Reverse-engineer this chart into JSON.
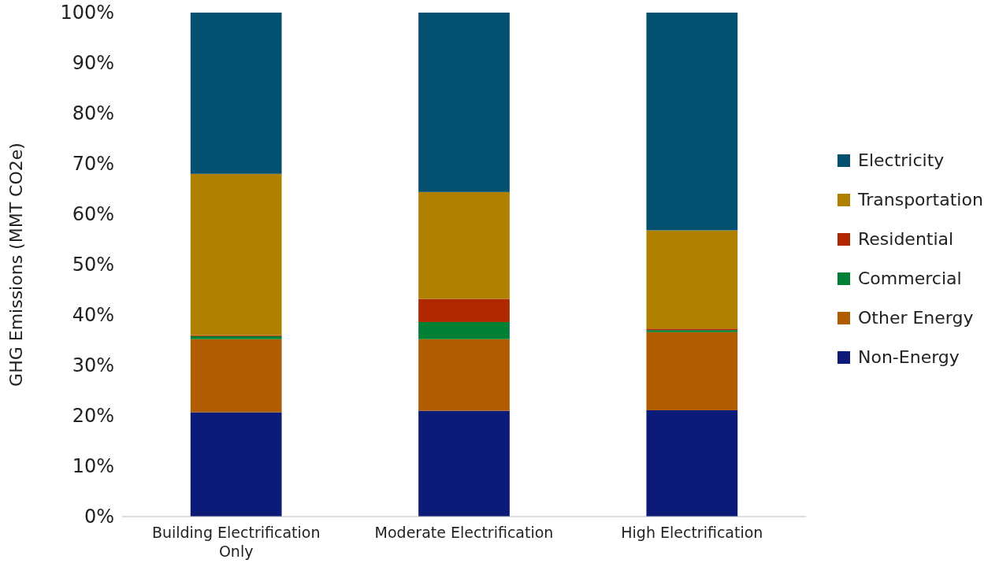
{
  "chart_data": {
    "type": "bar",
    "stacked": true,
    "ylabel": "GHG Emissions (MMT CO2e)",
    "categories": [
      "Building Electrification Only",
      "Moderate Electrification",
      "High Electrification"
    ],
    "series": [
      {
        "name": "Non-Energy",
        "color": "#0c1a78",
        "values": [
          20.7,
          21.0,
          21.1
        ]
      },
      {
        "name": "Other Energy",
        "color": "#b05c00",
        "values": [
          14.5,
          14.2,
          15.5
        ]
      },
      {
        "name": "Commercial",
        "color": "#008035",
        "values": [
          0.6,
          3.4,
          0.4
        ]
      },
      {
        "name": "Residential",
        "color": "#b02800",
        "values": [
          0.2,
          4.6,
          0.3
        ]
      },
      {
        "name": "Transportation",
        "color": "#b08000",
        "values": [
          32.0,
          21.2,
          19.5
        ]
      },
      {
        "name": "Electricity",
        "color": "#045070",
        "values": [
          32.0,
          35.6,
          43.2
        ]
      }
    ],
    "ylim": [
      0,
      100
    ],
    "yticks": [
      {
        "value": 0,
        "label": "0%"
      },
      {
        "value": 10,
        "label": "10%"
      },
      {
        "value": 20,
        "label": "20%"
      },
      {
        "value": 30,
        "label": "30%"
      },
      {
        "value": 40,
        "label": "40%"
      },
      {
        "value": 50,
        "label": "50%"
      },
      {
        "value": 60,
        "label": "60%"
      },
      {
        "value": 70,
        "label": "70%"
      },
      {
        "value": 80,
        "label": "80%"
      },
      {
        "value": 90,
        "label": "90%"
      },
      {
        "value": 100,
        "label": "100%"
      }
    ],
    "grid": false,
    "legend": "right"
  }
}
